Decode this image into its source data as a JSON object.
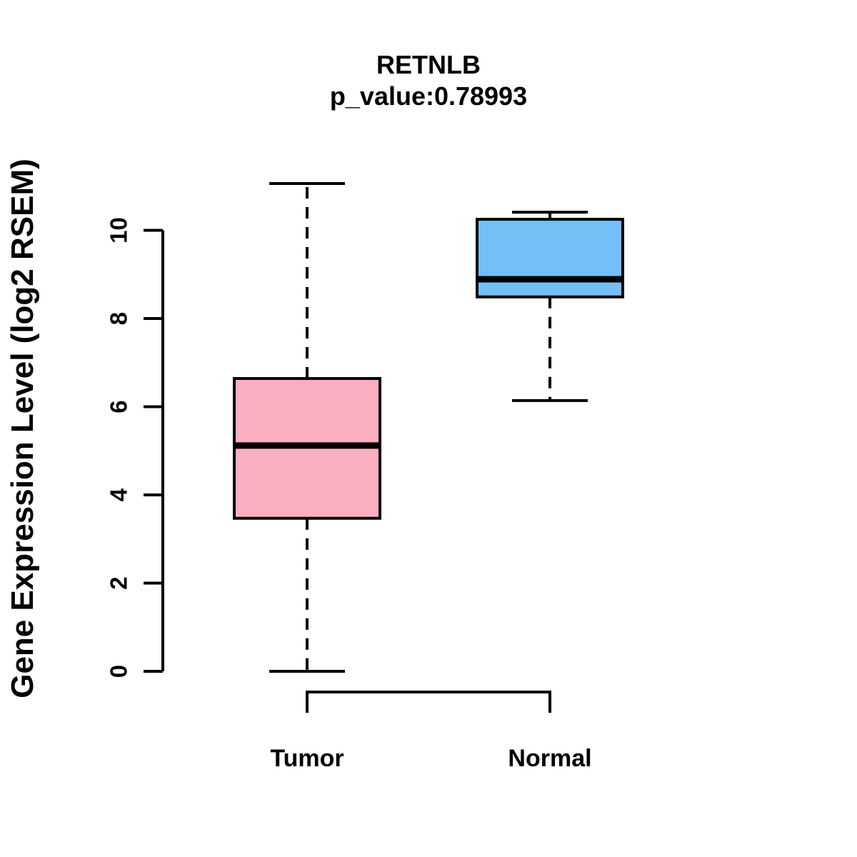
{
  "chart_data": {
    "type": "boxplot",
    "title": "RETNLB",
    "subtitle": "p_value:0.78993",
    "ylabel": "Gene Expression Level (log2 RSEM)",
    "xlabel": "",
    "ylim": [
      0,
      11.1
    ],
    "yticks": [
      0,
      2,
      4,
      6,
      8,
      10
    ],
    "categories": [
      "Tumor",
      "Normal"
    ],
    "series": [
      {
        "name": "Tumor",
        "fill_color": "#FBAEC0",
        "whisker_low": 0.0,
        "q1": 3.47,
        "median": 5.12,
        "q3": 6.64,
        "whisker_high": 11.06
      },
      {
        "name": "Normal",
        "fill_color": "#73BFF8",
        "whisker_low": 6.14,
        "q1": 8.49,
        "median": 8.89,
        "q3": 10.25,
        "whisker_high": 10.41
      }
    ],
    "legend": "none",
    "grid": false,
    "line_color": "#000000",
    "background_color": "#FFFFFF"
  }
}
